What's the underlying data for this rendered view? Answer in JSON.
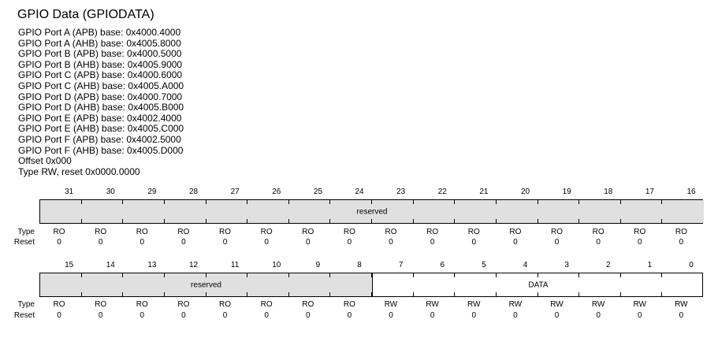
{
  "title": "GPIO Data (GPIODATA)",
  "info_lines": [
    "GPIO Port A (APB) base: 0x4000.4000",
    "GPIO Port A (AHB) base: 0x4005.8000",
    "GPIO Port B (APB) base: 0x4000.5000",
    "GPIO Port B (AHB) base: 0x4005.9000",
    "GPIO Port C (APB) base: 0x4000.6000",
    "GPIO Port C (AHB) base: 0x4005.A000",
    "GPIO Port D (APB) base: 0x4000.7000",
    "GPIO Port D (AHB) base: 0x4005.B000",
    "GPIO Port E (APB) base: 0x4002.4000",
    "GPIO Port E (AHB) base: 0x4005.C000",
    "GPIO Port F (APB) base: 0x4002.5000",
    "GPIO Port F (AHB) base: 0x4005.D000",
    "Offset 0x000",
    "Type RW, reset 0x0000.0000"
  ],
  "labels": {
    "type": "Type",
    "reset": "Reset"
  },
  "rows": [
    {
      "bits": [
        "31",
        "30",
        "29",
        "28",
        "27",
        "26",
        "25",
        "24",
        "23",
        "22",
        "21",
        "20",
        "19",
        "18",
        "17",
        "16"
      ],
      "fields": [
        {
          "name": "reserved",
          "start_index": 0,
          "count": 16,
          "reserved": true
        }
      ],
      "types": [
        "RO",
        "RO",
        "RO",
        "RO",
        "RO",
        "RO",
        "RO",
        "RO",
        "RO",
        "RO",
        "RO",
        "RO",
        "RO",
        "RO",
        "RO",
        "RO"
      ],
      "resets": [
        "0",
        "0",
        "0",
        "0",
        "0",
        "0",
        "0",
        "0",
        "0",
        "0",
        "0",
        "0",
        "0",
        "0",
        "0",
        "0"
      ]
    },
    {
      "bits": [
        "15",
        "14",
        "13",
        "12",
        "11",
        "10",
        "9",
        "8",
        "7",
        "6",
        "5",
        "4",
        "3",
        "2",
        "1",
        "0"
      ],
      "fields": [
        {
          "name": "reserved",
          "start_index": 0,
          "count": 8,
          "reserved": true
        },
        {
          "name": "DATA",
          "start_index": 8,
          "count": 8,
          "reserved": false
        }
      ],
      "types": [
        "RO",
        "RO",
        "RO",
        "RO",
        "RO",
        "RO",
        "RO",
        "RO",
        "RW",
        "RW",
        "RW",
        "RW",
        "RW",
        "RW",
        "RW",
        "RW"
      ],
      "resets": [
        "0",
        "0",
        "0",
        "0",
        "0",
        "0",
        "0",
        "0",
        "0",
        "0",
        "0",
        "0",
        "0",
        "0",
        "0",
        "0"
      ]
    }
  ]
}
